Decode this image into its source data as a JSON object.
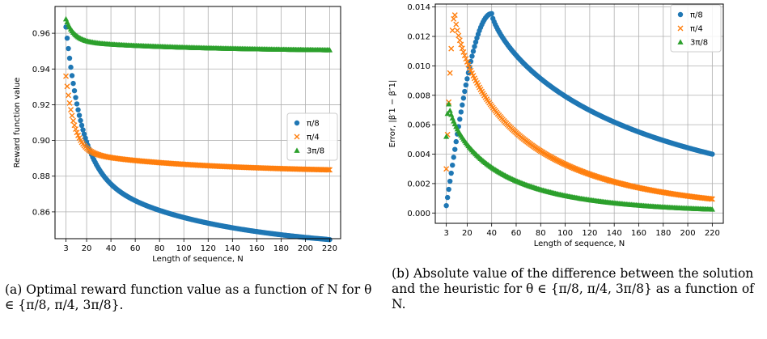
{
  "charts": [
    {
      "id": "a",
      "caption": "(a) Optimal reward function value as a function of N for θ ∈ {π/8, π/4, 3π/8}.",
      "chart_data": {
        "type": "scatter",
        "title": "",
        "xlabel": "Length of sequence, N",
        "ylabel": "Reward function value",
        "xlim": [
          -6,
          229
        ],
        "ylim": [
          0.845,
          0.975
        ],
        "xticks": [
          3,
          20,
          40,
          60,
          80,
          100,
          120,
          140,
          160,
          180,
          200,
          220
        ],
        "xtick_labels": [
          "3",
          "20",
          "40",
          "60",
          "80",
          "100",
          "120",
          "140",
          "160",
          "180",
          "200",
          "220"
        ],
        "yticks": [
          0.86,
          0.88,
          0.9,
          0.92,
          0.94,
          0.96
        ],
        "ytick_labels": [
          "0.86",
          "0.88",
          "0.90",
          "0.92",
          "0.94",
          "0.96"
        ],
        "grid": true,
        "legend_position": "right",
        "series": [
          {
            "name": "π/8",
            "marker": "circle",
            "color": "#1f77b4",
            "model": {
              "kind": "decay",
              "asymptote": 0.8475,
              "amp": 0.038,
              "tau": 13,
              "base": 0.9635,
              "n0": 3,
              "n_end": 220
            }
          },
          {
            "name": "π/4",
            "marker": "x",
            "color": "#ff7f0e",
            "model": {
              "kind": "decay",
              "asymptote": 0.8843,
              "amp": 0.0095,
              "tau": 7,
              "base": 0.936,
              "n0": 3,
              "n_end": 220
            }
          },
          {
            "name": "3π/8",
            "marker": "triangle",
            "color": "#2ca02c",
            "model": {
              "kind": "decay",
              "asymptote": 0.951,
              "amp": 0.0045,
              "tau": 7,
              "base": 0.968,
              "n0": 3,
              "n_end": 220
            }
          }
        ]
      }
    },
    {
      "id": "b",
      "caption": "(b) Absolute value of the difference between the solution and the heuristic for θ ∈ {π/8, π/4, 3π/8} as a function of N.",
      "chart_data": {
        "type": "scatter",
        "title": "",
        "xlabel": "Length of sequence, N",
        "ylabel": "Error, |β′1 − β″1|",
        "xlim": [
          -6,
          229
        ],
        "ylim": [
          -0.0007,
          0.0142
        ],
        "xticks": [
          3,
          20,
          40,
          60,
          80,
          100,
          120,
          140,
          160,
          180,
          200,
          220
        ],
        "xtick_labels": [
          "3",
          "20",
          "40",
          "60",
          "80",
          "100",
          "120",
          "140",
          "160",
          "180",
          "200",
          "220"
        ],
        "yticks": [
          0.0,
          0.002,
          0.004,
          0.006,
          0.008,
          0.01,
          0.012,
          0.014
        ],
        "ytick_labels": [
          "0.000",
          "0.002",
          "0.004",
          "0.006",
          "0.008",
          "0.010",
          "0.012",
          "0.014"
        ],
        "grid": true,
        "legend_position": "top-right",
        "series": [
          {
            "name": "π/8",
            "marker": "circle",
            "color": "#1f77b4",
            "model": {
              "kind": "peak",
              "n0": 3,
              "peak_n": 40,
              "peak": 0.01355,
              "start": 0.0005,
              "n_end": 220,
              "end": 0.004
            }
          },
          {
            "name": "π/4",
            "marker": "x",
            "color": "#ff7f0e",
            "model": {
              "kind": "peak",
              "n0": 3,
              "peak_n": 10,
              "peak": 0.01345,
              "start": 0.003,
              "n_end": 220,
              "end": 0.00095
            }
          },
          {
            "name": "3π/8",
            "marker": "triangle",
            "color": "#2ca02c",
            "model": {
              "kind": "peak",
              "n0": 3,
              "peak_n": 5,
              "peak": 0.0074,
              "start": 0.0052,
              "n_end": 220,
              "end": 0.00025
            }
          }
        ]
      }
    }
  ]
}
